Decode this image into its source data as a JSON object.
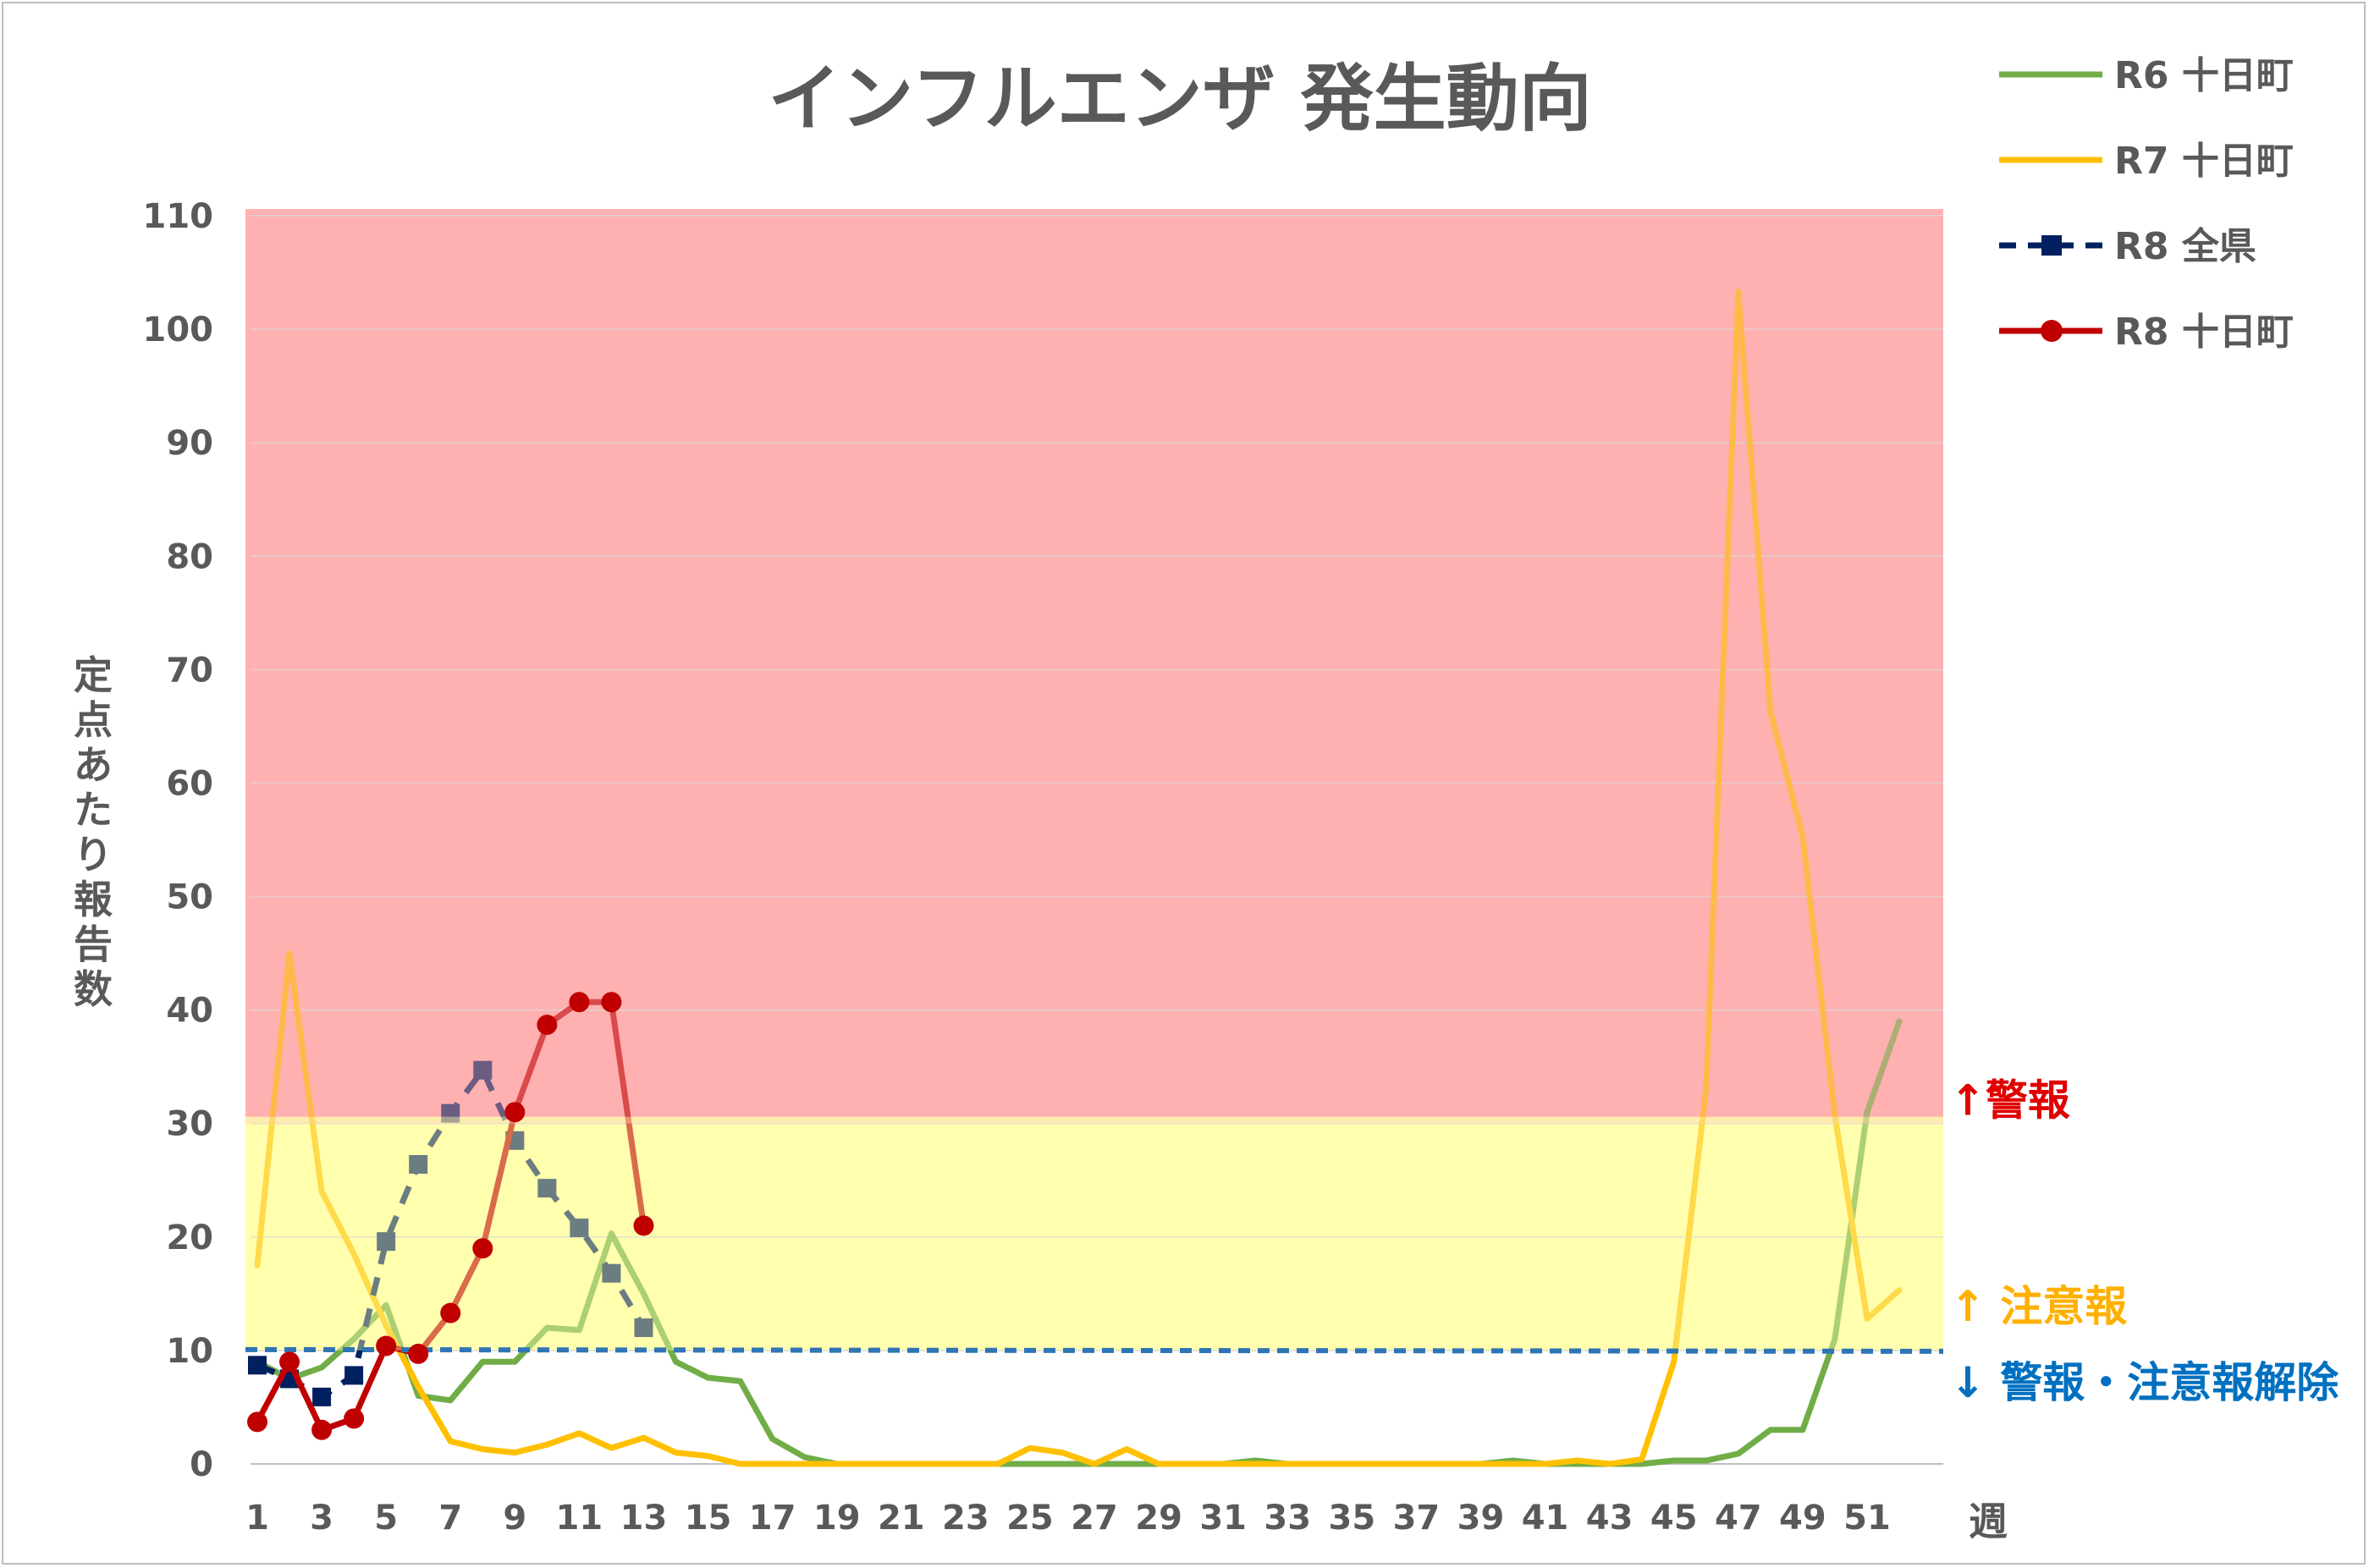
{
  "chart_data": {
    "type": "line",
    "title": "インフルエンザ 発生動向",
    "ylabel": "定点あたり報告数",
    "xlabel": "週",
    "ylim": [
      0,
      110
    ],
    "xlim": [
      1,
      52
    ],
    "y_ticks": [
      0,
      10,
      20,
      30,
      40,
      50,
      60,
      70,
      80,
      90,
      100,
      110
    ],
    "x_ticks": [
      1,
      3,
      5,
      7,
      9,
      11,
      13,
      15,
      17,
      19,
      21,
      23,
      25,
      27,
      29,
      31,
      33,
      35,
      37,
      39,
      41,
      43,
      45,
      47,
      49,
      51
    ],
    "legend_position": "top-right",
    "zones": [
      {
        "label": "↑警報",
        "from": 30,
        "to": 110,
        "color": "#ffb0b0",
        "text_color": "#e00000"
      },
      {
        "label": "↑ 注意報",
        "from": 10,
        "to": 30,
        "color": "#ffffaf",
        "text_color": "#ffb000"
      },
      {
        "label": "↓ 警報・注意報解除",
        "value": 10,
        "color": "#2f75b5",
        "text_color": "#0070c0"
      }
    ],
    "series": [
      {
        "name": "R6 十日町",
        "color": "#70ad47",
        "style": "solid",
        "marker": "none",
        "x": [
          1,
          2,
          3,
          4,
          5,
          6,
          7,
          8,
          9,
          10,
          11,
          12,
          13,
          14,
          15,
          16,
          17,
          18,
          19,
          20,
          21,
          22,
          23,
          24,
          25,
          26,
          27,
          28,
          29,
          30,
          31,
          32,
          33,
          34,
          35,
          36,
          37,
          38,
          39,
          40,
          41,
          42,
          43,
          44,
          45,
          46,
          47,
          48,
          49,
          50,
          51,
          52
        ],
        "values": [
          9,
          7.5,
          8.5,
          11,
          14,
          6,
          5.6,
          9,
          9,
          12,
          11.8,
          20.3,
          15,
          9,
          7.6,
          7.3,
          2.2,
          0.6,
          0,
          0,
          0,
          0,
          0,
          0,
          0,
          0,
          0,
          0,
          0,
          0,
          0,
          0.3,
          0,
          0,
          0,
          0,
          0,
          0,
          0,
          0.3,
          0,
          0,
          0,
          0,
          0.3,
          0.3,
          0.9,
          3,
          3,
          11,
          31,
          39
        ]
      },
      {
        "name": "R7 十日町",
        "color": "#ffc000",
        "style": "solid",
        "marker": "none",
        "x": [
          1,
          2,
          3,
          4,
          5,
          6,
          7,
          8,
          9,
          10,
          11,
          12,
          13,
          14,
          15,
          16,
          17,
          18,
          19,
          20,
          21,
          22,
          23,
          24,
          25,
          26,
          27,
          28,
          29,
          30,
          31,
          32,
          33,
          34,
          35,
          36,
          37,
          38,
          39,
          40,
          41,
          42,
          43,
          44,
          45,
          46,
          47,
          48,
          49,
          50,
          51,
          52
        ],
        "values": [
          17.5,
          45,
          24,
          18.5,
          12.2,
          6.8,
          2,
          1.3,
          1,
          1.7,
          2.7,
          1.4,
          2.3,
          1,
          0.7,
          0,
          0,
          0,
          0,
          0,
          0,
          0,
          0,
          0,
          1.4,
          1,
          0,
          1.3,
          0,
          0,
          0,
          0,
          0,
          0,
          0,
          0,
          0,
          0,
          0,
          0,
          0,
          0.3,
          0,
          0.4,
          9,
          33,
          103.3,
          66.3,
          55.3,
          30.7,
          12.8,
          15.3
        ]
      },
      {
        "name": "R8 全県",
        "color": "#002060",
        "style": "dashed",
        "marker": "square",
        "x": [
          1,
          2,
          3,
          4,
          5,
          6,
          7,
          8,
          9,
          10,
          11,
          12,
          13
        ],
        "values": [
          8.7,
          7.5,
          5.9,
          7.8,
          19.6,
          26.4,
          30.9,
          34.7,
          28.5,
          24.3,
          20.8,
          16.8,
          12
        ]
      },
      {
        "name": "R8 十日町",
        "color": "#c00000",
        "style": "solid",
        "marker": "circle",
        "x": [
          1,
          2,
          3,
          4,
          5,
          6,
          7,
          8,
          9,
          10,
          11,
          12,
          13
        ],
        "values": [
          3.7,
          9,
          3,
          4,
          10.4,
          9.7,
          13.3,
          19,
          31,
          38.7,
          40.7,
          40.7,
          21
        ]
      }
    ]
  }
}
